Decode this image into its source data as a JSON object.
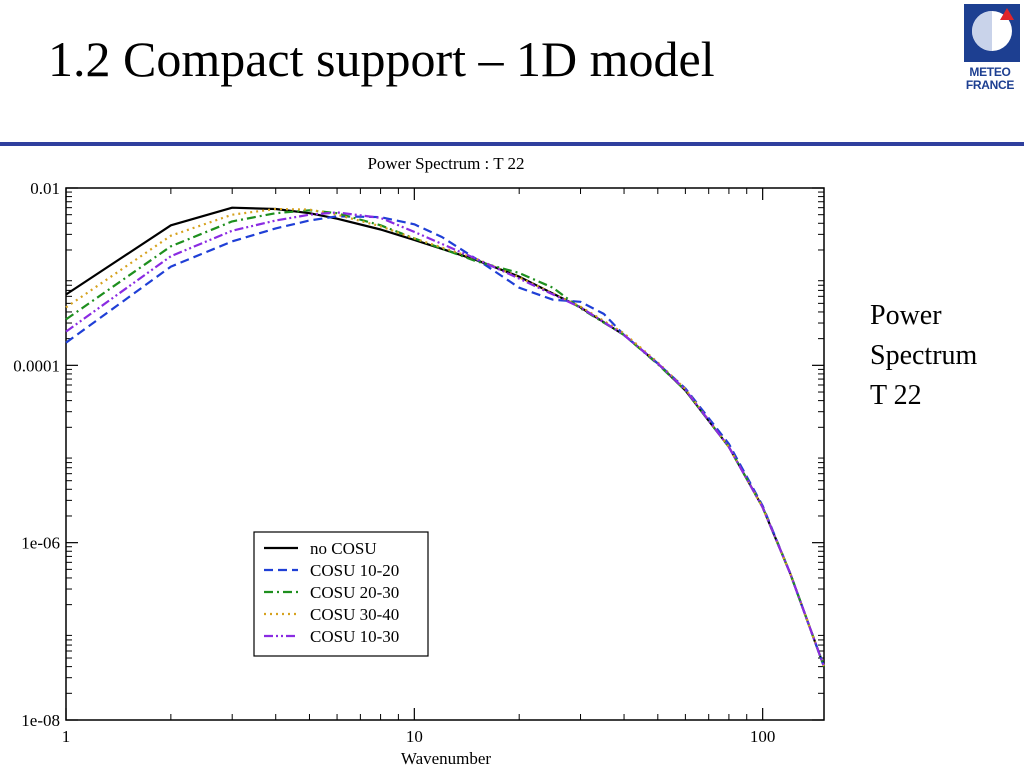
{
  "slide": {
    "title": "1.2 Compact support – 1D model",
    "logo_text": [
      "METEO",
      "FRANCE"
    ],
    "side_note": [
      "Power",
      "Spectrum",
      "T 22"
    ]
  },
  "colors": {
    "rule": "#2f3f9e",
    "logo_blue": "#1d3f91",
    "logo_red": "#e0242a"
  },
  "chart_data": {
    "type": "line",
    "title": "Power Spectrum : T 22",
    "xlabel": "Wavenumber",
    "ylabel": "",
    "x_scale": "log",
    "y_scale": "log",
    "xlim": [
      1,
      150
    ],
    "ylim": [
      1e-08,
      0.01
    ],
    "x_ticks": [
      {
        "value": 1,
        "label": "1"
      },
      {
        "value": 10,
        "label": "10"
      },
      {
        "value": 100,
        "label": "100"
      }
    ],
    "y_ticks": [
      {
        "value": 1e-08,
        "label": "1e-08"
      },
      {
        "value": 1e-06,
        "label": "1e-06"
      },
      {
        "value": 0.0001,
        "label": "0.0001"
      },
      {
        "value": 0.01,
        "label": "0.01"
      }
    ],
    "grid": false,
    "legend_position": "bottom-left",
    "series": [
      {
        "name": "no COSU",
        "color": "#000000",
        "dash": "solid",
        "points": [
          [
            1,
            0.00063
          ],
          [
            2,
            0.0038
          ],
          [
            3,
            0.006
          ],
          [
            4,
            0.0058
          ],
          [
            5,
            0.0052
          ],
          [
            6,
            0.0045
          ],
          [
            8,
            0.0034
          ],
          [
            10,
            0.0026
          ],
          [
            15,
            0.00155
          ],
          [
            20,
            0.001
          ],
          [
            30,
            0.00045
          ],
          [
            40,
            0.00022
          ],
          [
            50,
            0.000105
          ],
          [
            60,
            5.2e-05
          ],
          [
            80,
            1.2e-05
          ],
          [
            100,
            2.5e-06
          ],
          [
            120,
            4.5e-07
          ],
          [
            150,
            4e-08
          ]
        ]
      },
      {
        "name": "COSU 10-20",
        "color": "#1f3fd6",
        "dash": "dashed",
        "points": [
          [
            1,
            0.00018
          ],
          [
            2,
            0.0013
          ],
          [
            3,
            0.0025
          ],
          [
            4,
            0.0035
          ],
          [
            5,
            0.0043
          ],
          [
            6,
            0.0048
          ],
          [
            8,
            0.0047
          ],
          [
            10,
            0.0039
          ],
          [
            12,
            0.0028
          ],
          [
            15,
            0.0016
          ],
          [
            20,
            0.00075
          ],
          [
            25,
            0.00055
          ],
          [
            30,
            0.00052
          ],
          [
            35,
            0.00038
          ],
          [
            40,
            0.00022
          ],
          [
            50,
            0.000105
          ],
          [
            60,
            5.5e-05
          ],
          [
            80,
            1.3e-05
          ],
          [
            100,
            2.6e-06
          ],
          [
            120,
            4.5e-07
          ],
          [
            150,
            4e-08
          ]
        ]
      },
      {
        "name": "COSU 20-30",
        "color": "#1e8f1e",
        "dash": "dashdot",
        "points": [
          [
            1,
            0.00033
          ],
          [
            2,
            0.0022
          ],
          [
            3,
            0.0042
          ],
          [
            4,
            0.0052
          ],
          [
            5,
            0.0056
          ],
          [
            6,
            0.0052
          ],
          [
            8,
            0.0038
          ],
          [
            10,
            0.0027
          ],
          [
            15,
            0.0015
          ],
          [
            20,
            0.0011
          ],
          [
            25,
            0.00075
          ],
          [
            30,
            0.00044
          ],
          [
            40,
            0.00022
          ],
          [
            50,
            0.000103
          ],
          [
            60,
            5.2e-05
          ],
          [
            80,
            1.2e-05
          ],
          [
            100,
            2.5e-06
          ],
          [
            120,
            4.5e-07
          ],
          [
            150,
            4e-08
          ]
        ]
      },
      {
        "name": "COSU 30-40",
        "color": "#d6a21f",
        "dash": "dotted",
        "points": [
          [
            1,
            0.00045
          ],
          [
            2,
            0.0029
          ],
          [
            3,
            0.005
          ],
          [
            4,
            0.0058
          ],
          [
            5,
            0.0057
          ],
          [
            6,
            0.005
          ],
          [
            8,
            0.0037
          ],
          [
            10,
            0.0027
          ],
          [
            15,
            0.0016
          ],
          [
            20,
            0.00098
          ],
          [
            30,
            0.00046
          ],
          [
            40,
            0.00023
          ],
          [
            50,
            0.000108
          ],
          [
            60,
            5.4e-05
          ],
          [
            80,
            1.2e-05
          ],
          [
            100,
            2.5e-06
          ],
          [
            120,
            4.5e-07
          ],
          [
            150,
            4e-08
          ]
        ]
      },
      {
        "name": "COSU 10-30",
        "color": "#8a2be2",
        "dash": "dashdotdot",
        "points": [
          [
            1,
            0.00024
          ],
          [
            2,
            0.0017
          ],
          [
            3,
            0.0033
          ],
          [
            4,
            0.0043
          ],
          [
            5,
            0.005
          ],
          [
            6,
            0.0053
          ],
          [
            8,
            0.0046
          ],
          [
            10,
            0.0032
          ],
          [
            15,
            0.0016
          ],
          [
            20,
            0.00095
          ],
          [
            30,
            0.00045
          ],
          [
            40,
            0.00022
          ],
          [
            50,
            0.000105
          ],
          [
            60,
            5.3e-05
          ],
          [
            80,
            1.2e-05
          ],
          [
            100,
            2.5e-06
          ],
          [
            120,
            4.5e-07
          ],
          [
            150,
            4e-08
          ]
        ]
      }
    ]
  }
}
